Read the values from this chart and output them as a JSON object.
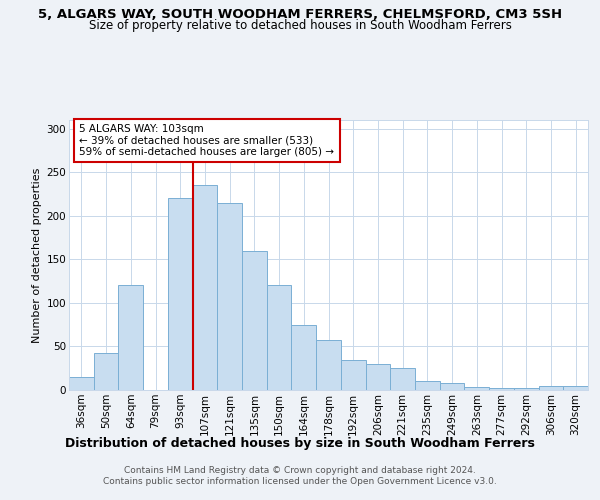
{
  "title": "5, ALGARS WAY, SOUTH WOODHAM FERRERS, CHELMSFORD, CM3 5SH",
  "subtitle": "Size of property relative to detached houses in South Woodham Ferrers",
  "xlabel": "Distribution of detached houses by size in South Woodham Ferrers",
  "ylabel": "Number of detached properties",
  "footnote1": "Contains HM Land Registry data © Crown copyright and database right 2024.",
  "footnote2": "Contains public sector information licensed under the Open Government Licence v3.0.",
  "bar_labels": [
    "36sqm",
    "50sqm",
    "64sqm",
    "79sqm",
    "93sqm",
    "107sqm",
    "121sqm",
    "135sqm",
    "150sqm",
    "164sqm",
    "178sqm",
    "192sqm",
    "206sqm",
    "221sqm",
    "235sqm",
    "249sqm",
    "263sqm",
    "277sqm",
    "292sqm",
    "306sqm",
    "320sqm"
  ],
  "bar_heights": [
    15,
    42,
    120,
    0,
    220,
    235,
    215,
    160,
    120,
    75,
    57,
    35,
    30,
    25,
    10,
    8,
    3,
    2,
    2,
    5,
    5
  ],
  "bar_color": "#c8ddf0",
  "bar_edge_color": "#7aafd4",
  "property_line_color": "#cc0000",
  "annotation_title": "5 ALGARS WAY: 103sqm",
  "annotation_line2": "← 39% of detached houses are smaller (533)",
  "annotation_line3": "59% of semi-detached houses are larger (805) →",
  "annotation_box_color": "#ffffff",
  "annotation_box_edge": "#cc0000",
  "ylim": [
    0,
    310
  ],
  "yticks": [
    0,
    50,
    100,
    150,
    200,
    250,
    300
  ],
  "bg_color": "#eef2f7",
  "plot_bg_color": "#ffffff",
  "grid_color": "#c8d8ea",
  "title_fontsize": 9.5,
  "subtitle_fontsize": 8.5,
  "tick_fontsize": 7.5,
  "ylabel_fontsize": 8,
  "xlabel_fontsize": 9,
  "footnote_fontsize": 6.5
}
